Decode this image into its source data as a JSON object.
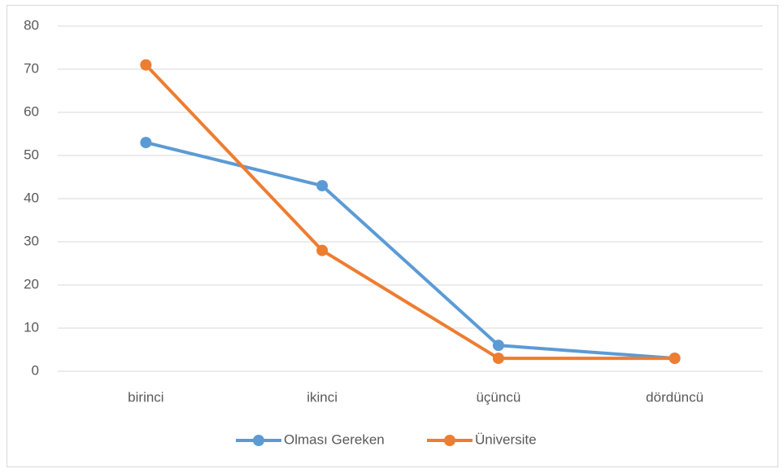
{
  "chart_data": {
    "type": "line",
    "categories": [
      "birinci",
      "ikinci",
      "üçüncü",
      "dördüncü"
    ],
    "series": [
      {
        "name": "Olması Gereken",
        "color": "#5b9bd5",
        "values": [
          53,
          43,
          6,
          3
        ]
      },
      {
        "name": "Üniversite",
        "color": "#ed7d31",
        "values": [
          71,
          28,
          3,
          3
        ]
      }
    ],
    "ylim": [
      0,
      80
    ],
    "yticks": [
      0,
      10,
      20,
      30,
      40,
      50,
      60,
      70,
      80
    ],
    "grid": true,
    "legend": "bottom"
  }
}
